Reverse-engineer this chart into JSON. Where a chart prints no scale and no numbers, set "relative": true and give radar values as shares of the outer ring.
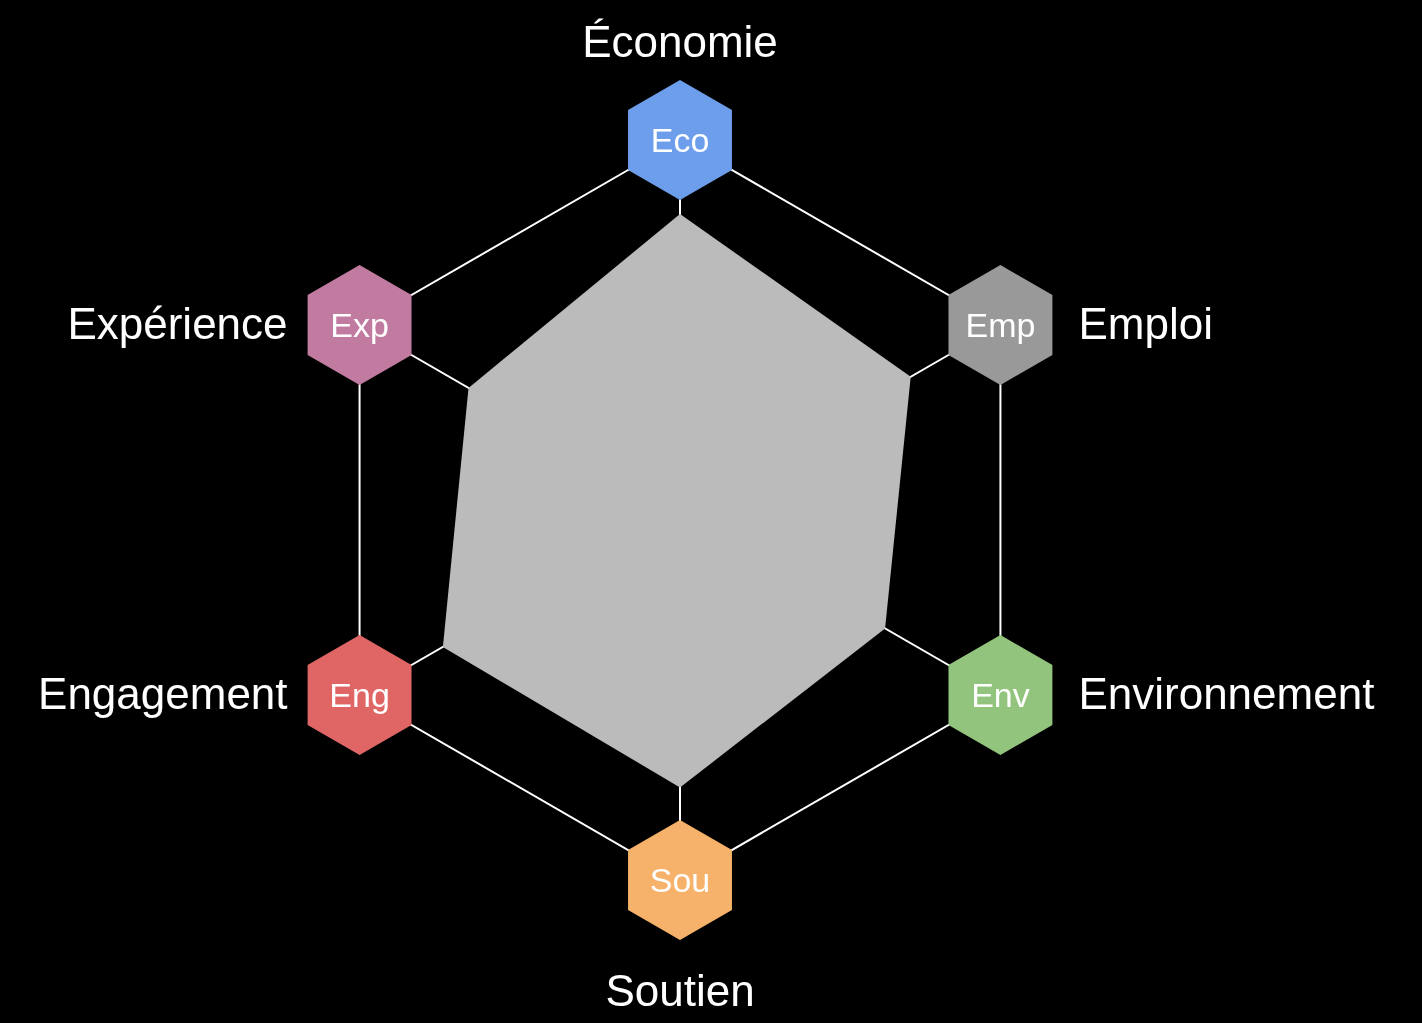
{
  "chart_data": {
    "type": "radar",
    "relative": true,
    "categories": [
      "Économie",
      "Emploi",
      "Environnement",
      "Soutien",
      "Engagement",
      "Expérience"
    ],
    "series": [
      {
        "color": "#bbbbbb",
        "values": [
          0.8,
          0.72,
          0.64,
          0.75,
          0.74,
          0.66
        ]
      }
    ],
    "colors": [
      "#6d9eeb",
      "#999999",
      "#93c47d",
      "#f6b26b",
      "#e06666",
      "#c27ba0"
    ],
    "annotations": [
      "Eco",
      "Emp",
      "Env",
      "Sou",
      "Eng",
      "Exp"
    ]
  }
}
